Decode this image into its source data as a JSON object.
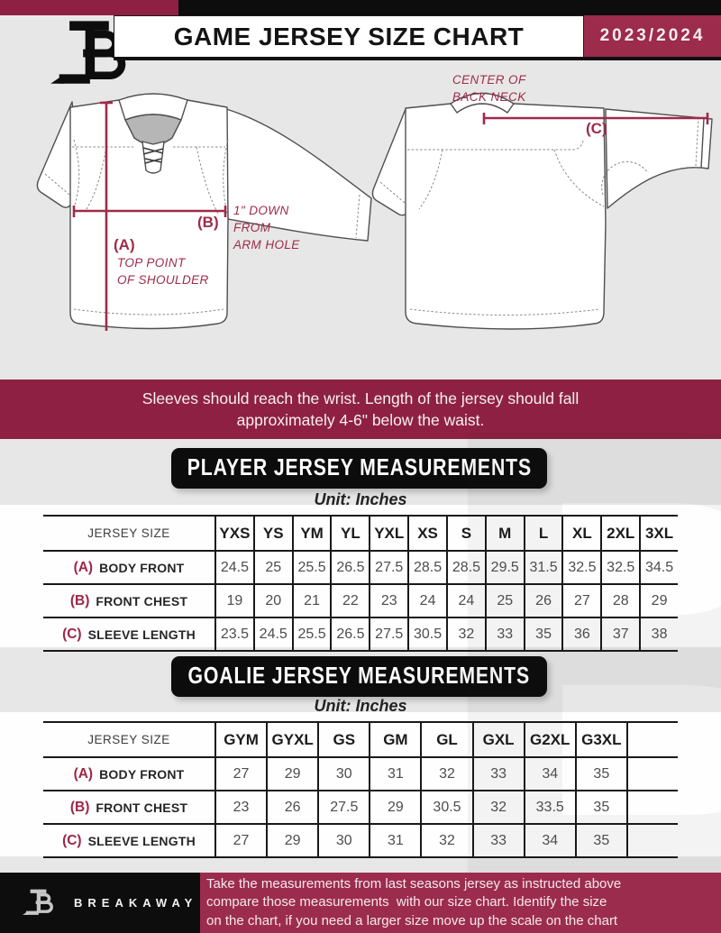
{
  "header": {
    "title": "GAME JERSEY SIZE CHART",
    "season": "2023/2024"
  },
  "diagram": {
    "front": {
      "a_label": "(A)",
      "a_note": "TOP POINT\nOF SHOULDER",
      "b_label": "(B)",
      "b_note": "1\" DOWN\nFROM\nARM HOLE"
    },
    "back": {
      "c_label": "(C)",
      "c_note": "CENTER OF\nBACK NECK"
    }
  },
  "banner": {
    "lines": [
      "Sleeves should reach the wrist. Length of the jersey should fall",
      "approximately 4-6\" below the waist."
    ]
  },
  "sections": [
    {
      "title": "PLAYER JERSEY MEASUREMENTS",
      "unit": "Unit: Inches",
      "table": {
        "corner": "JERSEY SIZE",
        "sizes": [
          "YXS",
          "YS",
          "YM",
          "YL",
          "YXL",
          "XS",
          "S",
          "M",
          "L",
          "XL",
          "2XL",
          "3XL"
        ],
        "rows": [
          {
            "key": "(A)",
            "name": "BODY FRONT",
            "values": [
              "24.5",
              "25",
              "25.5",
              "26.5",
              "27.5",
              "28.5",
              "28.5",
              "29.5",
              "31.5",
              "32.5",
              "32.5",
              "34.5"
            ]
          },
          {
            "key": "(B)",
            "name": "FRONT CHEST",
            "values": [
              "19",
              "20",
              "21",
              "22",
              "23",
              "24",
              "24",
              "25",
              "26",
              "27",
              "28",
              "29"
            ]
          },
          {
            "key": "(C)",
            "name": "SLEEVE LENGTH",
            "values": [
              "23.5",
              "24.5",
              "25.5",
              "26.5",
              "27.5",
              "30.5",
              "32",
              "33",
              "35",
              "36",
              "37",
              "38"
            ]
          }
        ]
      }
    },
    {
      "title": "GOALIE JERSEY MEASUREMENTS",
      "unit": "Unit: Inches",
      "table": {
        "corner": "JERSEY SIZE",
        "sizes": [
          "GYM",
          "GYXL",
          "GS",
          "GM",
          "GL",
          "GXL",
          "G2XL",
          "G3XL",
          ""
        ],
        "rows": [
          {
            "key": "(A)",
            "name": "BODY FRONT",
            "values": [
              "27",
              "29",
              "30",
              "31",
              "32",
              "33",
              "34",
              "35",
              ""
            ]
          },
          {
            "key": "(B)",
            "name": "FRONT CHEST",
            "values": [
              "23",
              "26",
              "27.5",
              "29",
              "30.5",
              "32",
              "33.5",
              "35",
              ""
            ]
          },
          {
            "key": "(C)",
            "name": "SLEEVE LENGTH",
            "values": [
              "27",
              "29",
              "30",
              "31",
              "32",
              "33",
              "34",
              "35",
              ""
            ]
          }
        ]
      }
    }
  ],
  "footer": {
    "brand": "BREAKAWAY",
    "note_lines": [
      "Take the measurements from last seasons jersey as instructed above",
      "compare those measurements  with our size chart. Identify the size",
      "on the chart, if you need a larger size move up the scale on the chart"
    ]
  },
  "watermark_letter": "B",
  "colors": {
    "maroon_dark": "#8e2143",
    "maroon_light": "#9d2b4b",
    "black": "#0d0d0d",
    "page_bg": "#e8e7e7"
  }
}
